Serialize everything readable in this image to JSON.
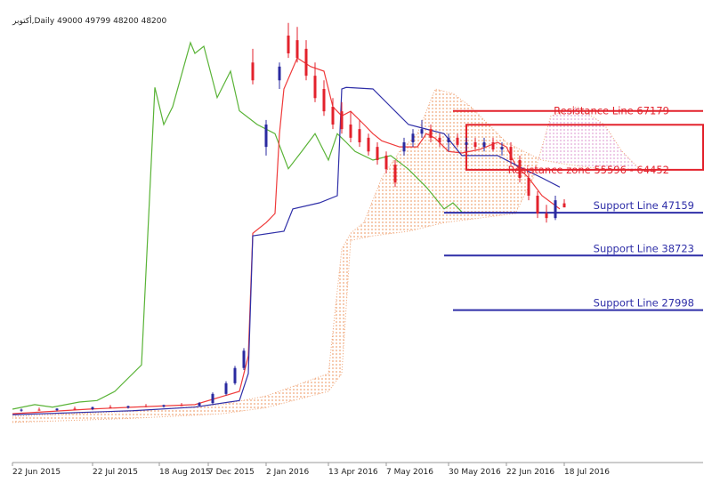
{
  "chart_data": {
    "type": "candlestick",
    "title": "أكتوبر,Daily  49000 49799 48200 48200",
    "xlim": [
      0,
      154
    ],
    "ylim": [
      -2000,
      85500
    ],
    "xticks": [
      {
        "value": 0,
        "label": "22 Jun 2015"
      },
      {
        "value": 18,
        "label": "22 Jul 2015"
      },
      {
        "value": 33,
        "label": "18 Aug 2015"
      },
      {
        "value": 44,
        "label": "7 Dec 2015"
      },
      {
        "value": 57,
        "label": "2 Jan 2016"
      },
      {
        "value": 71,
        "label": "13 Apr 2016"
      },
      {
        "value": 84,
        "label": "7 May 2016"
      },
      {
        "value": 98,
        "label": "30 May 2016"
      },
      {
        "value": 111,
        "label": "22 Jun 2016"
      },
      {
        "value": 124,
        "label": "18 Jul 2016"
      }
    ],
    "candles": {
      "up_color": "#2a2aa0",
      "down_color": "#e3222c",
      "x": [
        2,
        6,
        10,
        14,
        18,
        22,
        26,
        30,
        34,
        38,
        42,
        45,
        48,
        50,
        52,
        54,
        57,
        60,
        62,
        64,
        66,
        68,
        70,
        72,
        74,
        76,
        78,
        80,
        82,
        84,
        86,
        88,
        90,
        92,
        94,
        96,
        98,
        100,
        102,
        104,
        106,
        108,
        110,
        112,
        114,
        116,
        118,
        120,
        122,
        124
      ],
      "open": [
        8200,
        8400,
        8300,
        8600,
        8500,
        8900,
        8800,
        9100,
        9000,
        9300,
        9200,
        9700,
        11500,
        13600,
        16600,
        76700,
        60100,
        73200,
        82000,
        81100,
        79400,
        74100,
        71500,
        68000,
        67100,
        64500,
        63600,
        61900,
        60100,
        58400,
        56600,
        59200,
        61000,
        62700,
        63600,
        61900,
        61000,
        61900,
        60500,
        61000,
        60100,
        61000,
        59600,
        60100,
        57500,
        54000,
        50500,
        47000,
        46100,
        49000
      ],
      "high": [
        8600,
        8800,
        8700,
        9000,
        9000,
        9300,
        9200,
        9500,
        9400,
        9700,
        9900,
        11800,
        14000,
        17000,
        20500,
        79400,
        65400,
        76700,
        84500,
        83700,
        81100,
        76700,
        73200,
        69700,
        68900,
        67100,
        65400,
        62700,
        61000,
        59200,
        57500,
        61900,
        63600,
        65400,
        64500,
        62700,
        62700,
        62700,
        61900,
        61900,
        61900,
        61900,
        61000,
        61000,
        58400,
        54900,
        51400,
        48700,
        50500,
        49799
      ],
      "low": [
        8000,
        8200,
        8100,
        8400,
        8300,
        8700,
        8600,
        8900,
        8800,
        9100,
        9000,
        9500,
        11200,
        13300,
        16200,
        72400,
        58400,
        71500,
        77600,
        76700,
        73200,
        68900,
        66200,
        63600,
        62700,
        61000,
        60100,
        58400,
        56600,
        54900,
        52200,
        58400,
        60100,
        61900,
        61000,
        60100,
        59200,
        60100,
        59200,
        59600,
        59200,
        59200,
        58400,
        56600,
        53100,
        49600,
        46100,
        45200,
        45700,
        48200
      ],
      "close": [
        8400,
        8300,
        8600,
        8500,
        8900,
        8800,
        9100,
        9000,
        9300,
        9200,
        9700,
        11500,
        13600,
        16600,
        20000,
        73200,
        64500,
        75900,
        78500,
        77600,
        74100,
        69700,
        67100,
        64500,
        63600,
        61900,
        61000,
        59200,
        57500,
        55700,
        53100,
        61000,
        62700,
        63600,
        61900,
        61000,
        61900,
        60500,
        61000,
        60100,
        61000,
        59600,
        60100,
        57500,
        54000,
        50500,
        47000,
        46100,
        49600,
        48200
      ]
    },
    "series": [
      {
        "color": "#59b336",
        "x": [
          0,
          5,
          9,
          15,
          19,
          23,
          29,
          32,
          34,
          36,
          40,
          41,
          43,
          46,
          49,
          51,
          55,
          59,
          62,
          65,
          68,
          71,
          73,
          75,
          77,
          81,
          85,
          89,
          93,
          97,
          99,
          101
        ],
        "values": [
          8500,
          9400,
          8900,
          9900,
          10200,
          12000,
          17200,
          71800,
          64500,
          68000,
          80600,
          78500,
          79900,
          69800,
          75000,
          67200,
          64500,
          62700,
          55800,
          59200,
          62700,
          57500,
          62700,
          61000,
          59200,
          57500,
          58400,
          55700,
          52200,
          47900,
          49100,
          47300
        ]
      },
      {
        "color": "#ef3a3a",
        "x": [
          0,
          17,
          27,
          41,
          51,
          53,
          54,
          57,
          59,
          60,
          61,
          64,
          67,
          70,
          72,
          74,
          76,
          79,
          81,
          83,
          87,
          91,
          93,
          95,
          98,
          101,
          105,
          109,
          111,
          113,
          116,
          119,
          123
        ],
        "values": [
          7600,
          8500,
          8900,
          9400,
          12000,
          19000,
          43100,
          45200,
          47000,
          62700,
          71500,
          77600,
          75900,
          75000,
          68000,
          66200,
          67100,
          64500,
          62700,
          61300,
          60100,
          60100,
          62700,
          61800,
          59200,
          58900,
          59600,
          61000,
          60100,
          56600,
          54000,
          50500,
          47900
        ]
      },
      {
        "color": "#2f2fa8",
        "x": [
          0,
          27,
          41,
          51,
          53,
          54,
          61,
          63,
          69,
          73,
          74,
          75,
          81,
          85,
          89,
          93,
          97,
          101,
          109,
          115,
          119,
          123
        ],
        "values": [
          7400,
          8200,
          8900,
          10200,
          15500,
          42600,
          43500,
          47900,
          49100,
          50500,
          71500,
          71800,
          71500,
          68000,
          64500,
          63600,
          62700,
          58400,
          58400,
          55700,
          54000,
          52200
        ]
      }
    ],
    "cloud": {
      "colors": [
        "#f0a678",
        "#e2a6d8"
      ],
      "span_a": {
        "x": [
          0,
          27,
          47,
          57,
          71,
          74,
          76,
          79,
          83,
          87,
          91,
          95,
          99,
          103,
          107,
          111,
          115,
          119,
          125,
          133,
          141
        ],
        "values": [
          7100,
          8100,
          9400,
          11100,
          15500,
          40000,
          43100,
          45300,
          54000,
          59200,
          62700,
          71500,
          70600,
          68000,
          64500,
          61000,
          59200,
          57500,
          56600,
          55700,
          55700
        ]
      },
      "span_b": {
        "x": [
          0,
          27,
          47,
          57,
          71,
          74,
          76,
          81,
          89,
          97,
          105,
          113,
          117,
          121,
          127,
          133,
          137,
          141
        ],
        "values": [
          5900,
          6700,
          7600,
          8800,
          12000,
          15500,
          41700,
          42600,
          43500,
          45200,
          46100,
          47000,
          54000,
          66200,
          68000,
          64500,
          59200,
          55700
        ]
      }
    },
    "levels": [
      {
        "label": "Resistance Line 67179",
        "value": 67179,
        "color": "#e3222c",
        "x_start": 99
      },
      {
        "label": "Support Line 47159",
        "value": 47159,
        "color": "#2f2fa8",
        "x_start": 97
      },
      {
        "label": "Support Line 38723",
        "value": 38723,
        "color": "#2f2fa8",
        "x_start": 97
      },
      {
        "label": "Support Line 27998",
        "value": 27998,
        "color": "#2f2fa8",
        "x_start": 99
      }
    ],
    "zone": {
      "label": "Resistance zone 55596 - 64452",
      "low": 55596,
      "high": 64452,
      "color": "#e3222c",
      "x_start": 102
    }
  }
}
